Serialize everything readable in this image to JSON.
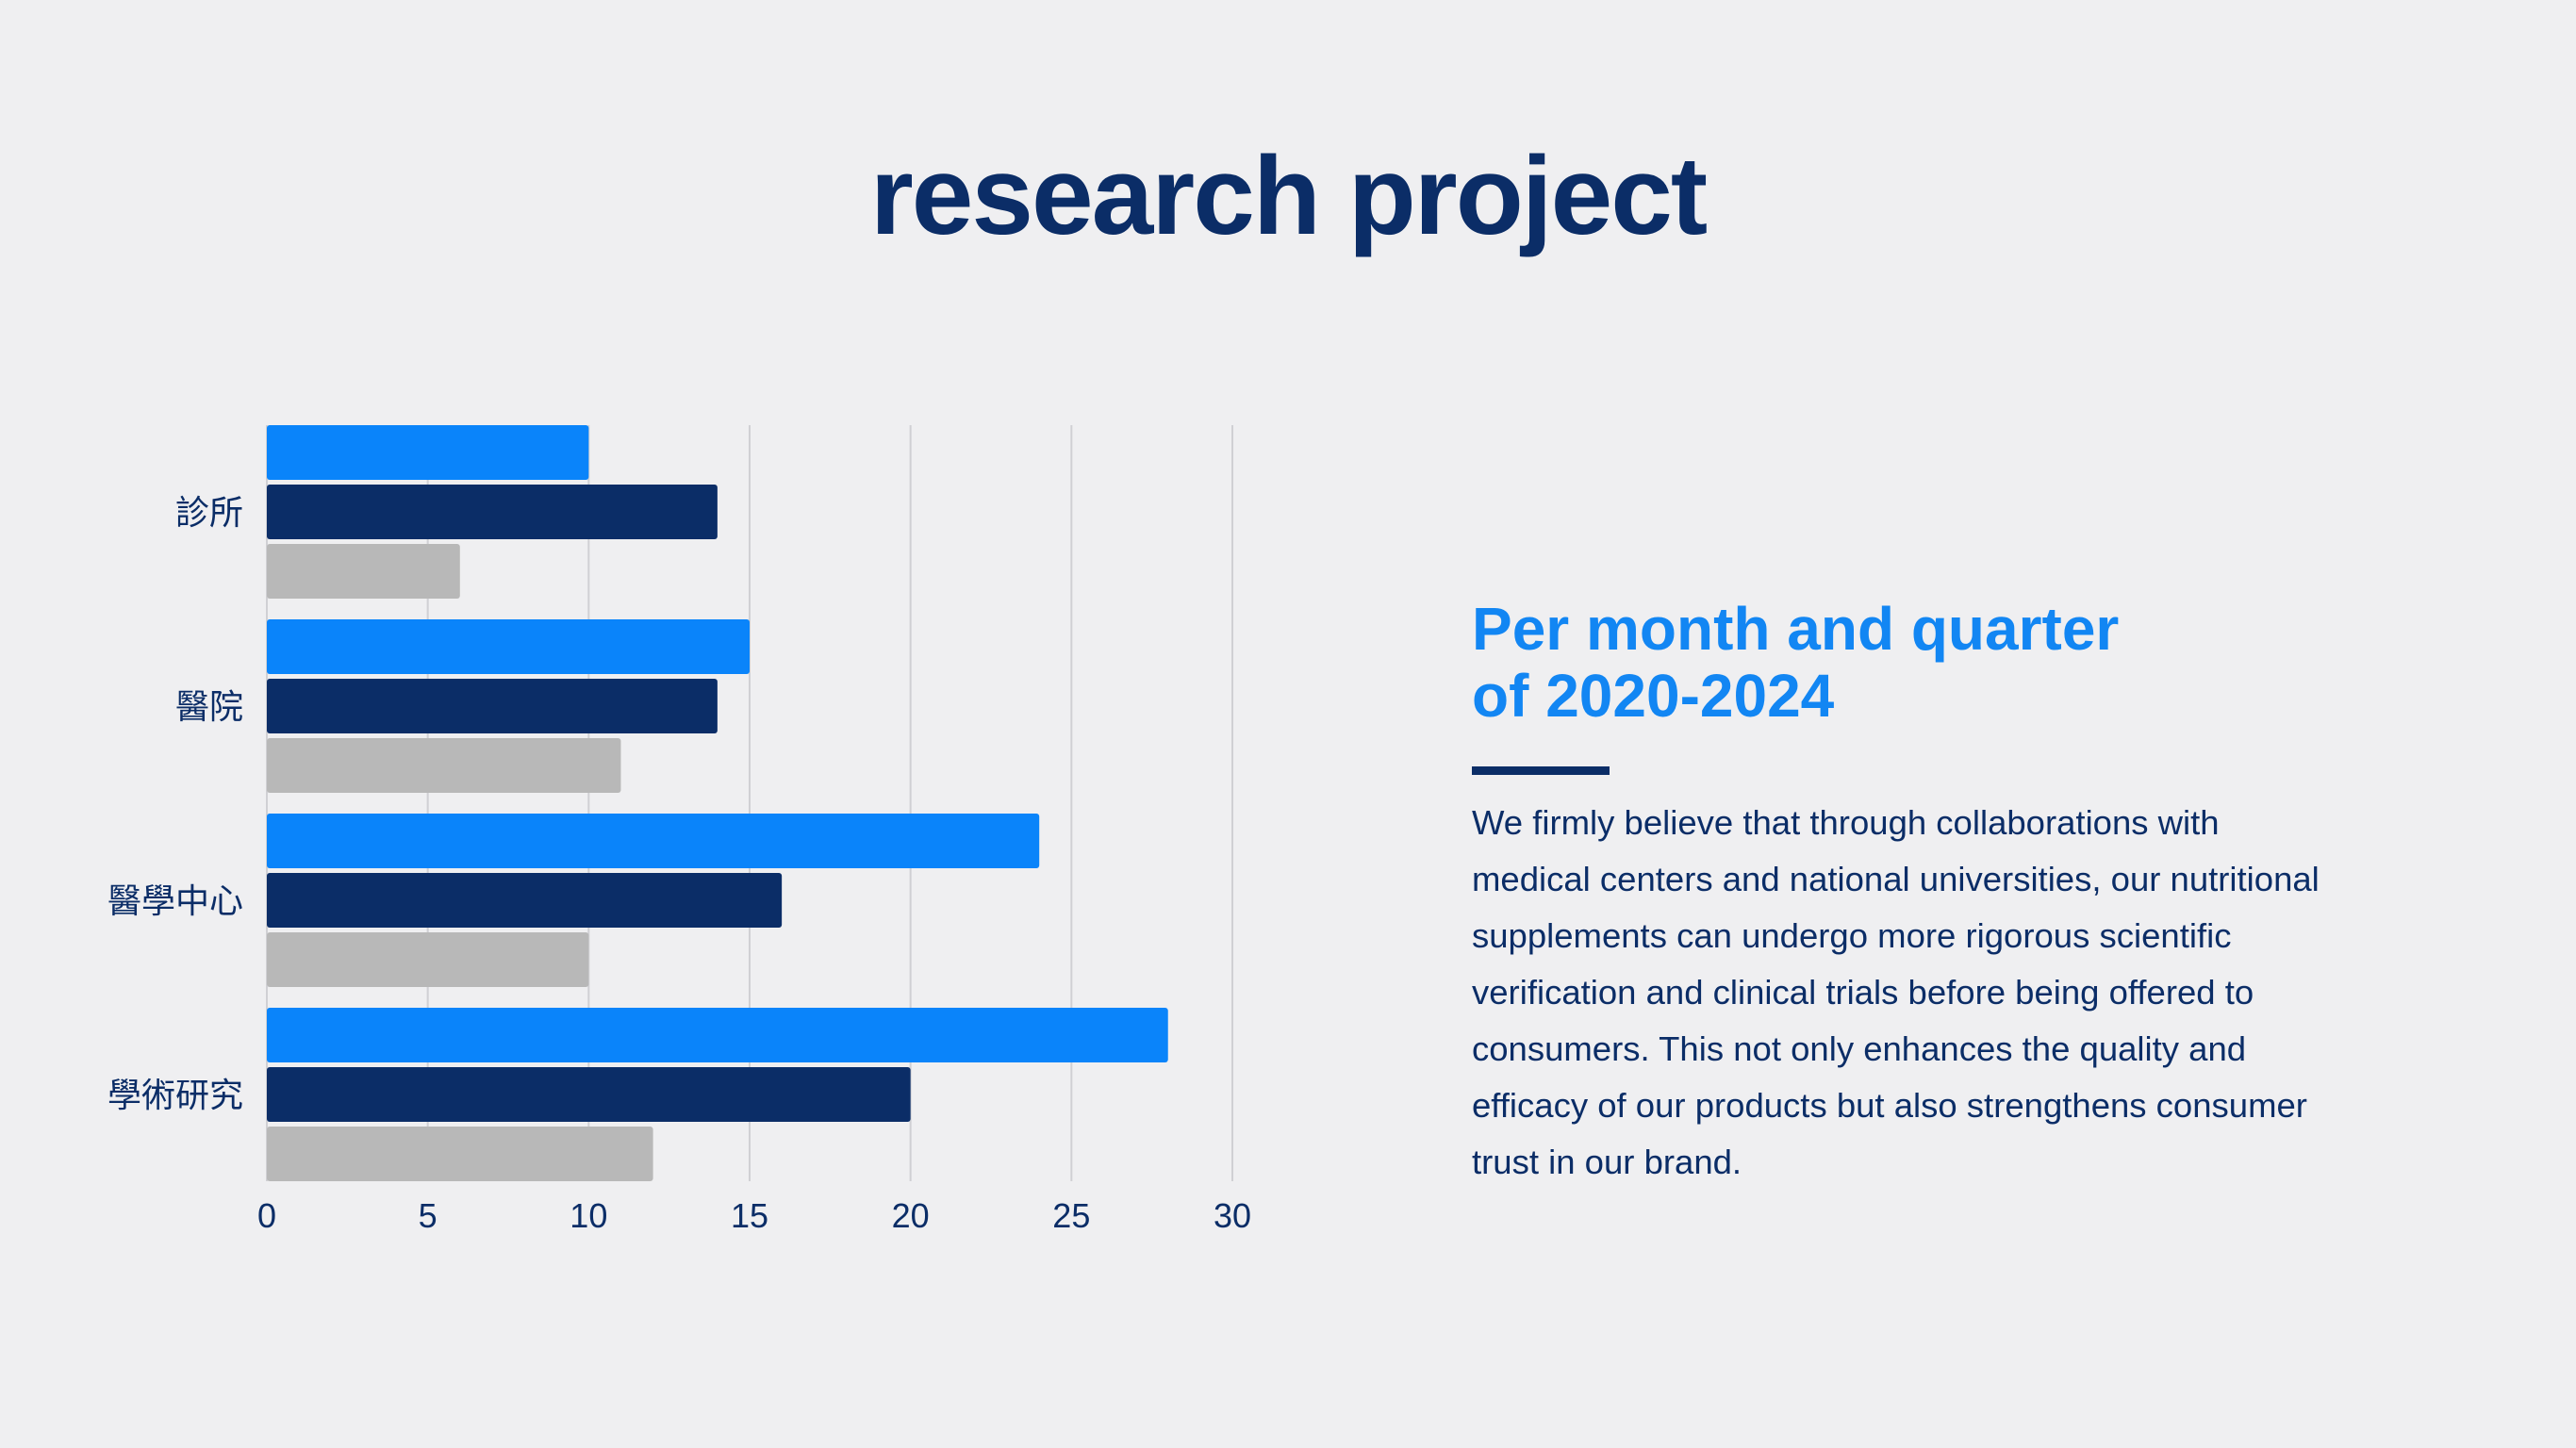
{
  "title": "research project",
  "subtitle_lines": [
    "Per month and quarter",
    "of 2020-2024"
  ],
  "body_lines": [
    "We firmly believe that through collaborations with",
    "medical centers and national universities, our nutritional",
    "supplements can undergo more rigorous scientific",
    "verification and clinical trials before being offered to",
    "consumers. This not only enhances the quality and",
    "efficacy of our products but also strengthens consumer",
    "trust in our brand."
  ],
  "colors": {
    "title": "#0b2d67",
    "accent": "#1286f3",
    "series": [
      "#0a84fa",
      "#0b2d67",
      "#b8b8b8"
    ],
    "grid": "#d0d0d4",
    "axis_text": "#0b2d67"
  },
  "chart_data": {
    "type": "bar",
    "orientation": "horizontal",
    "categories": [
      "診所",
      "醫院",
      "醫學中心",
      "學術研究"
    ],
    "series": [
      {
        "values": [
          10,
          15,
          24,
          28
        ]
      },
      {
        "values": [
          14,
          14,
          16,
          20
        ]
      },
      {
        "values": [
          6,
          11,
          10,
          12
        ]
      }
    ],
    "xlim": [
      0,
      30
    ],
    "xticks": [
      "0",
      "5",
      "10",
      "15",
      "20",
      "25",
      "30"
    ],
    "grid": true,
    "legend": "none"
  }
}
